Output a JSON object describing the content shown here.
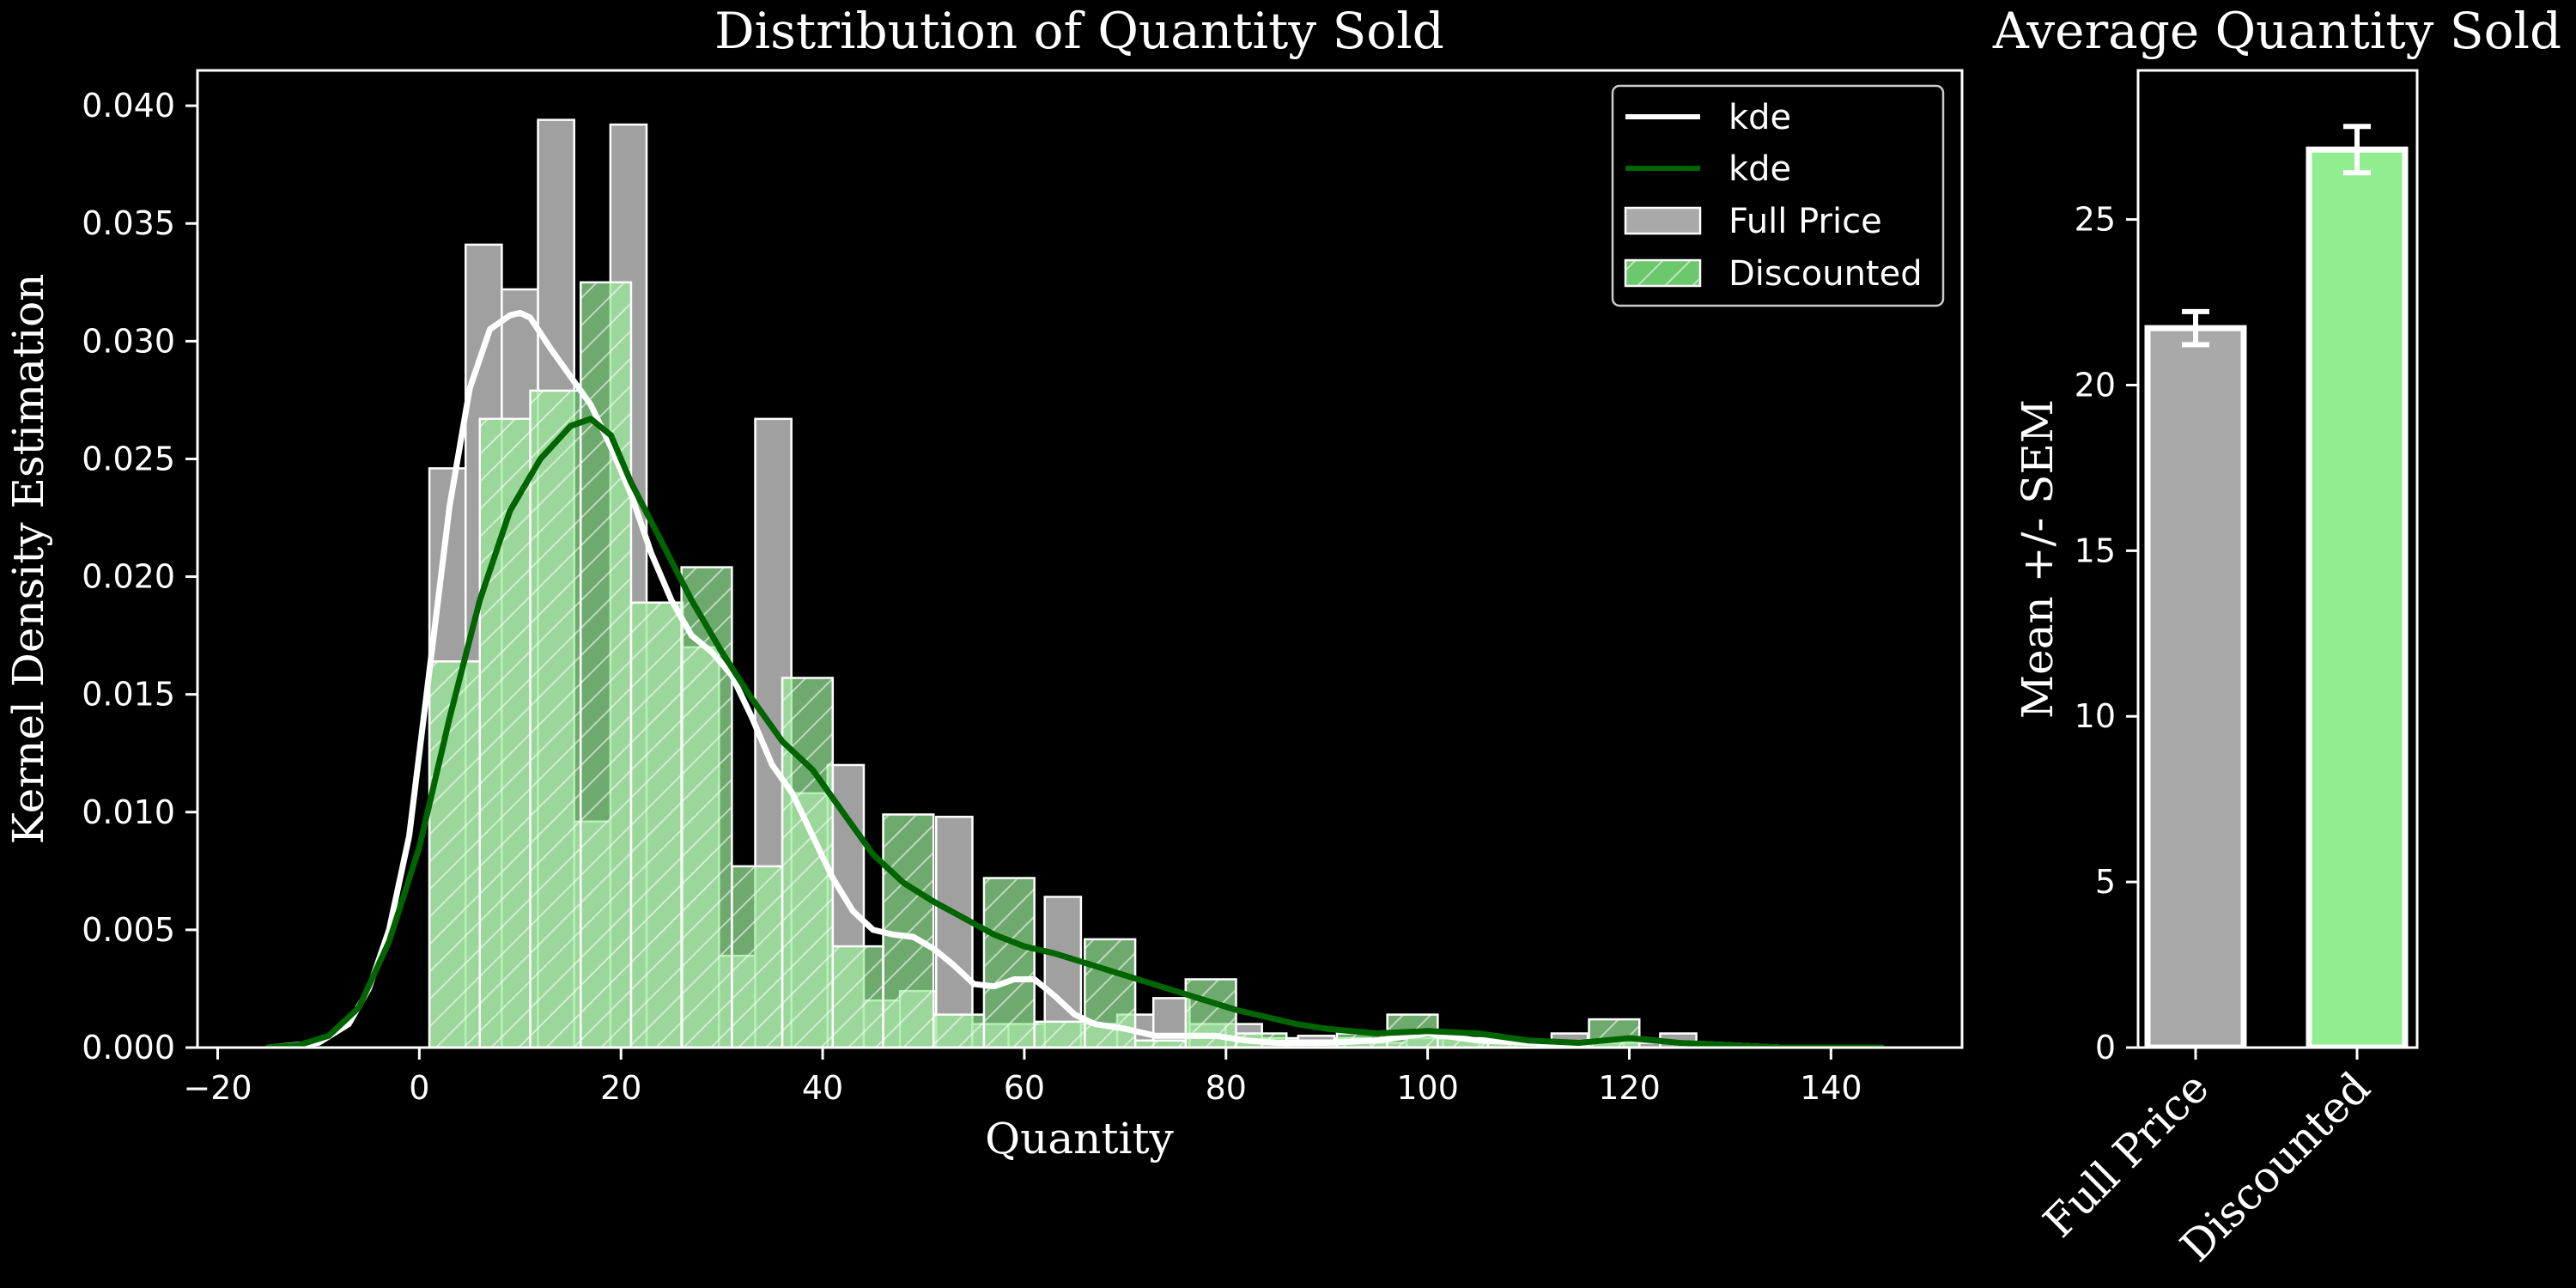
{
  "chart_data": [
    {
      "type": "histogram",
      "title": "Distribution of Quantity Sold",
      "xlabel": "Quantity",
      "ylabel": "Kernel Density Estimation",
      "xlim": [
        -22,
        153
      ],
      "ylim": [
        0,
        0.0415
      ],
      "xticks": [
        -20,
        0,
        20,
        40,
        60,
        80,
        100,
        120,
        140
      ],
      "xtick_labels": [
        "−20",
        "0",
        "20",
        "40",
        "60",
        "80",
        "100",
        "120",
        "140"
      ],
      "yticks": [
        0.0,
        0.005,
        0.01,
        0.015,
        0.02,
        0.025,
        0.03,
        0.035,
        0.04
      ],
      "ytick_labels": [
        "0.000",
        "0.005",
        "0.010",
        "0.015",
        "0.020",
        "0.025",
        "0.030",
        "0.035",
        "0.040"
      ],
      "legend": {
        "placement": "upper right",
        "entries": [
          {
            "label": "kde",
            "kind": "line",
            "color": "#ffffff"
          },
          {
            "label": "kde",
            "kind": "line",
            "color": "#006400"
          },
          {
            "label": "Full Price",
            "kind": "patch",
            "color": "#a9a9a9"
          },
          {
            "label": "Discounted",
            "kind": "patch-hatched",
            "color": "#6cc86c"
          }
        ]
      },
      "series": [
        {
          "name": "Full Price",
          "kind": "hist",
          "color": "#a9a9a9",
          "edgecolor": "#ffffff",
          "bin_edges": [
            1,
            4.59,
            8.18,
            11.77,
            15.36,
            18.95,
            22.54,
            26.13,
            29.72,
            33.31,
            36.9,
            40.49,
            44.08,
            47.67,
            51.26,
            54.85,
            58.44,
            62.03,
            65.62,
            69.21,
            72.8,
            76.39,
            79.98,
            83.57,
            87.16,
            90.75,
            94.34,
            97.93,
            101.52,
            105.11,
            108.7,
            112.29,
            115.88,
            119.47,
            123.06,
            126.65,
            130.24
          ],
          "values": [
            0.0246,
            0.0341,
            0.0322,
            0.0394,
            0.0096,
            0.0392,
            0.0189,
            0.017,
            0.0039,
            0.0267,
            0.0108,
            0.012,
            0.002,
            0.0024,
            0.0098,
            0.001,
            0.001,
            0.0064,
            0.001,
            0.0014,
            0.0021,
            0.001,
            0.001,
            0.0004,
            0.0005,
            0.0004,
            0.0002,
            0.0004,
            0.0004,
            0.0002,
            0.0002,
            0.0006,
            0.0002,
            0.0002,
            0.0006,
            0.0
          ]
        },
        {
          "name": "Discounted",
          "kind": "hist",
          "color": "#6cc86c",
          "color_light": "#98ec98",
          "hatch": "/",
          "edgecolor": "#ffffff",
          "bin_edges": [
            1,
            6,
            11,
            16,
            21,
            26,
            31,
            36,
            41,
            46,
            51,
            56,
            61,
            66,
            71,
            76,
            81,
            86,
            91,
            96,
            101,
            106,
            111,
            116,
            121
          ],
          "values": [
            0.0164,
            0.0267,
            0.0279,
            0.0325,
            0.0189,
            0.0204,
            0.0077,
            0.0157,
            0.0043,
            0.0099,
            0.0014,
            0.0072,
            0.0011,
            0.0046,
            0.0003,
            0.0029,
            0.0006,
            0.0003,
            0.0006,
            0.0014,
            0.0004,
            0.0003,
            0.0001,
            0.0012,
            0.0
          ]
        },
        {
          "name": "kde",
          "kind": "line",
          "color": "#ffffff",
          "x": [
            -15,
            -10,
            -7,
            -5,
            -3,
            -1,
            1,
            3,
            5,
            7,
            9,
            10,
            11,
            13,
            15,
            17,
            19,
            21,
            23,
            25,
            27,
            29,
            31,
            33,
            35,
            37,
            39,
            41,
            43,
            45,
            47,
            49,
            51,
            53,
            55,
            57,
            59,
            61,
            63,
            65,
            67,
            70,
            73,
            76,
            79,
            82,
            85,
            90,
            95,
            100,
            105,
            110,
            115,
            120,
            125,
            130,
            135,
            140,
            145
          ],
          "y": [
            0.0,
            0.0002,
            0.001,
            0.0025,
            0.005,
            0.009,
            0.016,
            0.023,
            0.028,
            0.0305,
            0.0311,
            0.0312,
            0.031,
            0.0297,
            0.0285,
            0.0273,
            0.0255,
            0.0235,
            0.021,
            0.019,
            0.0175,
            0.0168,
            0.0158,
            0.014,
            0.012,
            0.0108,
            0.009,
            0.0072,
            0.0058,
            0.005,
            0.0048,
            0.0047,
            0.0042,
            0.0035,
            0.0027,
            0.0026,
            0.0029,
            0.0029,
            0.0022,
            0.0014,
            0.001,
            0.0008,
            0.0005,
            0.0005,
            0.0005,
            0.0003,
            0.0002,
            0.0002,
            0.0003,
            0.0006,
            0.0003,
            0.0002,
            0.0002,
            0.0004,
            0.0002,
            0.0001,
            0.0,
            0.0,
            0.0
          ]
        },
        {
          "name": "kde",
          "kind": "line",
          "color": "#006400",
          "x": [
            -15,
            -12,
            -9,
            -6,
            -3,
            0,
            3,
            6,
            9,
            12,
            15,
            17,
            19,
            21,
            24,
            27,
            30,
            33,
            36,
            39,
            42,
            45,
            48,
            51,
            54,
            57,
            60,
            63,
            66,
            69,
            72,
            75,
            78,
            81,
            84,
            87,
            90,
            95,
            100,
            105,
            110,
            115,
            120,
            125,
            130,
            135,
            140,
            145
          ],
          "y": [
            0.0,
            0.0001,
            0.0005,
            0.0017,
            0.0045,
            0.0085,
            0.014,
            0.019,
            0.0228,
            0.025,
            0.0264,
            0.0267,
            0.026,
            0.024,
            0.0215,
            0.019,
            0.0168,
            0.0148,
            0.013,
            0.0118,
            0.01,
            0.0082,
            0.007,
            0.0062,
            0.0055,
            0.0048,
            0.0043,
            0.004,
            0.0036,
            0.0032,
            0.0028,
            0.0024,
            0.002,
            0.0016,
            0.0013,
            0.001,
            0.0008,
            0.0006,
            0.0007,
            0.0006,
            0.0003,
            0.0002,
            0.0004,
            0.0002,
            0.0001,
            0.0,
            0.0,
            0.0
          ]
        }
      ]
    },
    {
      "type": "bar",
      "title": "Average Quantity Sold",
      "ylabel": "Mean +/- SEM",
      "categories": [
        "Full Price",
        "Discounted"
      ],
      "values": [
        21.72,
        27.11
      ],
      "errors": [
        0.5,
        0.7
      ],
      "colors": [
        "#a9a9a9",
        "#90ee90"
      ],
      "edgecolor": "#ffffff",
      "ylim": [
        0,
        29.5
      ],
      "yticks": [
        0,
        5,
        10,
        15,
        20,
        25
      ],
      "ytick_labels": [
        "0",
        "5",
        "10",
        "15",
        "20",
        "25"
      ]
    }
  ]
}
